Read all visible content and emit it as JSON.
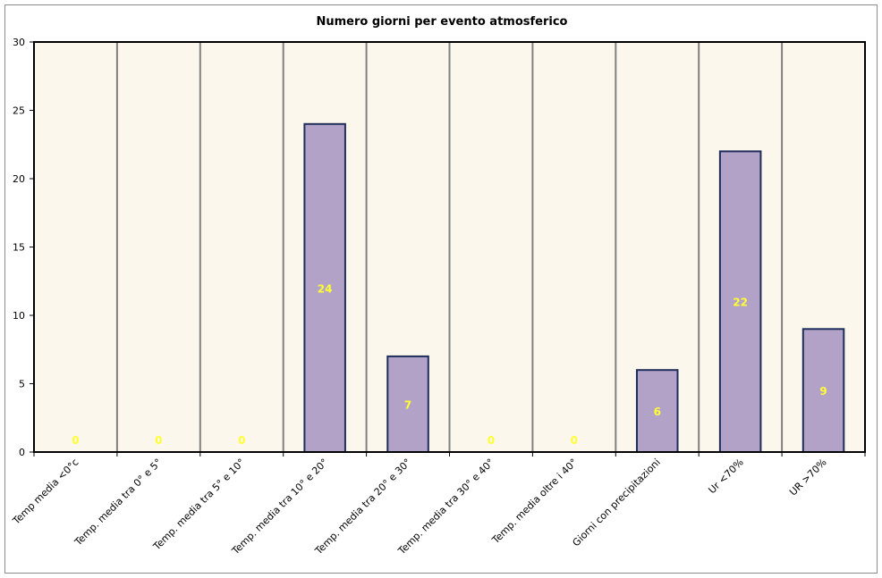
{
  "chart_data": {
    "type": "bar",
    "title": "Numero giorni per evento atmosferico",
    "categories": [
      "Temp media <0°c",
      "Temp. media tra 0° e 5°",
      "Temp. media tra 5° e 10°",
      "Temp. media tra 10° e 20°",
      "Temp. media tra 20° e 30°",
      "Temp. media tra 30° e 40°",
      "Temp. media oltre i 40°",
      "Giorni con precipitazioni",
      "Ur <70%",
      "UR >70%"
    ],
    "values": [
      0,
      0,
      0,
      24,
      7,
      0,
      0,
      6,
      22,
      9
    ],
    "ylim": [
      0,
      30
    ],
    "yticks": [
      0,
      5,
      10,
      15,
      20,
      25,
      30
    ],
    "grid": "vertical lines between categories",
    "legend": "none",
    "colors": {
      "bar_fill": "#b3a2c7",
      "bar_stroke": "#1f2d5a",
      "plot_background": "#fcf7ec",
      "data_label": "#ffff33",
      "grid_line": "#808080"
    }
  }
}
